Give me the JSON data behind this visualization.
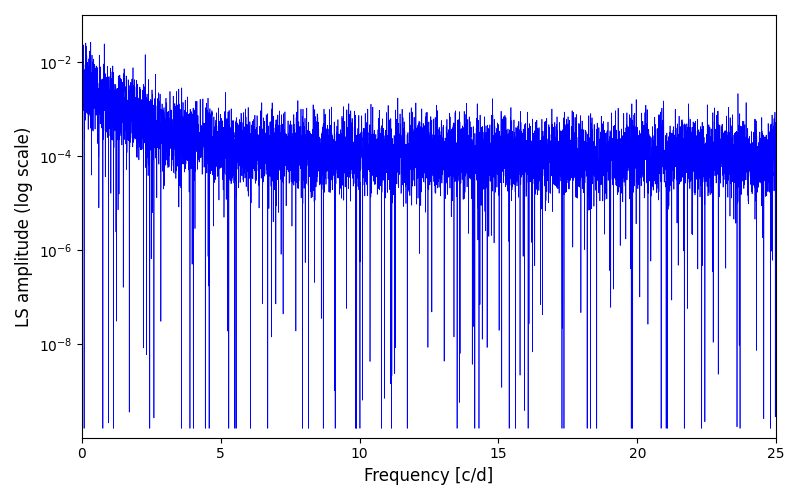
{
  "xlabel": "Frequency [c/d]",
  "ylabel": "LS amplitude (log scale)",
  "line_color": "#0000ff",
  "xlim": [
    0,
    25
  ],
  "ylim": [
    1e-10,
    0.1
  ],
  "yticks": [
    1e-08,
    1e-06,
    0.0001,
    0.01
  ],
  "xticks": [
    0,
    5,
    10,
    15,
    20,
    25
  ],
  "figsize": [
    8.0,
    5.0
  ],
  "dpi": 100,
  "n_points": 8000,
  "seed": 123,
  "background_color": "#ffffff"
}
